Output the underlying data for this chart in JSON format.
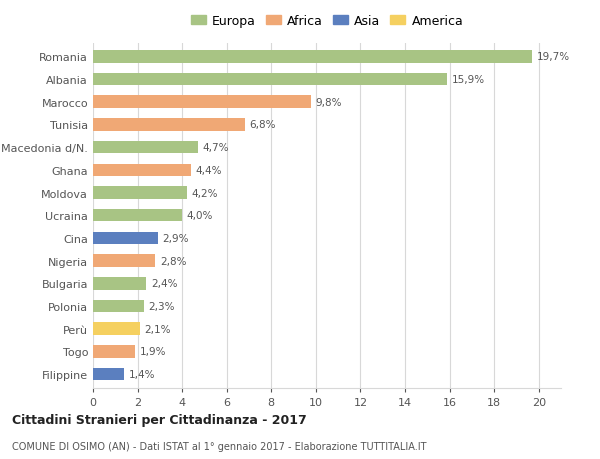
{
  "countries": [
    "Romania",
    "Albania",
    "Marocco",
    "Tunisia",
    "Macedonia d/N.",
    "Ghana",
    "Moldova",
    "Ucraina",
    "Cina",
    "Nigeria",
    "Bulgaria",
    "Polonia",
    "Perù",
    "Togo",
    "Filippine"
  ],
  "values": [
    19.7,
    15.9,
    9.8,
    6.8,
    4.7,
    4.4,
    4.2,
    4.0,
    2.9,
    2.8,
    2.4,
    2.3,
    2.1,
    1.9,
    1.4
  ],
  "labels": [
    "19,7%",
    "15,9%",
    "9,8%",
    "6,8%",
    "4,7%",
    "4,4%",
    "4,2%",
    "4,0%",
    "2,9%",
    "2,8%",
    "2,4%",
    "2,3%",
    "2,1%",
    "1,9%",
    "1,4%"
  ],
  "colors": [
    "#a8c484",
    "#a8c484",
    "#f0a875",
    "#f0a875",
    "#a8c484",
    "#f0a875",
    "#a8c484",
    "#a8c484",
    "#5b7fbf",
    "#f0a875",
    "#a8c484",
    "#a8c484",
    "#f5d060",
    "#f0a875",
    "#5b7fbf"
  ],
  "legend_labels": [
    "Europa",
    "Africa",
    "Asia",
    "America"
  ],
  "legend_colors": [
    "#a8c484",
    "#f0a875",
    "#5b7fbf",
    "#f5d060"
  ],
  "title": "Cittadini Stranieri per Cittadinanza - 2017",
  "subtitle": "COMUNE DI OSIMO (AN) - Dati ISTAT al 1° gennaio 2017 - Elaborazione TUTTITALIA.IT",
  "xlim": [
    0,
    21
  ],
  "xticks": [
    0,
    2,
    4,
    6,
    8,
    10,
    12,
    14,
    16,
    18,
    20
  ],
  "bg_color": "#ffffff",
  "grid_color": "#d8d8d8",
  "bar_height": 0.55
}
